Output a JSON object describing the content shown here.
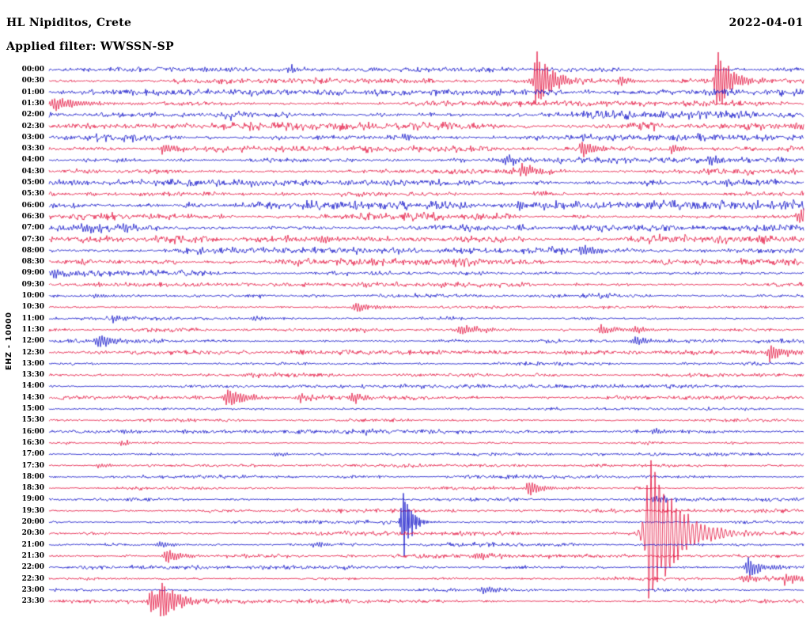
{
  "header": {
    "station": "HL Nipiditos, Crete",
    "date": "2022-04-01",
    "filter_label": "Applied filter: WWSSN-SP"
  },
  "y_axis": {
    "scale_label": "EHZ - 10000"
  },
  "colors": {
    "blue": "#0f10c8",
    "red": "#e3123d",
    "text": "#000000",
    "background": "#ffffff"
  },
  "chart_data": {
    "type": "line",
    "subtype": "helicorder-seismogram",
    "title": "HL Nipiditos, Crete",
    "date": "2022-04-01",
    "filter": "WWSSN-SP",
    "channel_scale": "EHZ - 10000",
    "minutes_per_row": 30,
    "row_count": 48,
    "trace_color_cycle": [
      "blue",
      "red"
    ],
    "legend_position": "none",
    "grid": false,
    "rows": [
      {
        "time": "00:00",
        "color": "blue",
        "noise": 2.0,
        "events": [
          {
            "x": 0.205,
            "amp": 3
          },
          {
            "x": 0.32,
            "amp": 3
          }
        ]
      },
      {
        "time": "00:30",
        "color": "red",
        "noise": 2.2,
        "events": [
          {
            "x": 0.645,
            "amp": 34,
            "tau": 6
          },
          {
            "x": 0.755,
            "amp": 5
          },
          {
            "x": 0.885,
            "amp": 40,
            "tau": 5
          }
        ]
      },
      {
        "time": "01:00",
        "color": "blue",
        "noise": 2.5,
        "events": [
          {
            "x": 0.59,
            "amp": 4
          }
        ]
      },
      {
        "time": "01:30",
        "color": "red",
        "noise": 2.2,
        "events": [
          {
            "x": 0.006,
            "amp": 9,
            "tau": 10
          }
        ]
      },
      {
        "time": "02:00",
        "color": "blue",
        "noise": 3.2,
        "events": []
      },
      {
        "time": "02:30",
        "color": "red",
        "noise": 3.0,
        "events": [
          {
            "x": 0.985,
            "amp": 5
          }
        ]
      },
      {
        "time": "03:00",
        "color": "blue",
        "noise": 2.8,
        "events": [
          {
            "x": 0.47,
            "amp": 4
          }
        ]
      },
      {
        "time": "03:30",
        "color": "red",
        "noise": 2.4,
        "events": [
          {
            "x": 0.15,
            "amp": 7
          },
          {
            "x": 0.705,
            "amp": 12,
            "tau": 5
          },
          {
            "x": 0.825,
            "amp": 5
          }
        ]
      },
      {
        "time": "04:00",
        "color": "blue",
        "noise": 2.4,
        "events": [
          {
            "x": 0.605,
            "amp": 6
          },
          {
            "x": 0.875,
            "amp": 7
          }
        ]
      },
      {
        "time": "04:30",
        "color": "red",
        "noise": 2.4,
        "events": [
          {
            "x": 0.625,
            "amp": 9,
            "tau": 6
          }
        ]
      },
      {
        "time": "05:00",
        "color": "blue",
        "noise": 2.6,
        "events": [
          {
            "x": 0.895,
            "amp": 4
          }
        ]
      },
      {
        "time": "05:30",
        "color": "red",
        "noise": 2.8,
        "events": []
      },
      {
        "time": "06:00",
        "color": "blue",
        "noise": 3.4,
        "events": [
          {
            "x": 0.62,
            "amp": 5
          }
        ]
      },
      {
        "time": "06:30",
        "color": "red",
        "noise": 3.0,
        "events": [
          {
            "x": 0.995,
            "amp": 10,
            "tau": 8
          }
        ]
      },
      {
        "time": "07:00",
        "color": "blue",
        "noise": 3.0,
        "events": [
          {
            "x": 0.045,
            "amp": 5
          },
          {
            "x": 0.1,
            "amp": 4
          }
        ]
      },
      {
        "time": "07:30",
        "color": "red",
        "noise": 3.2,
        "events": [
          {
            "x": 0.315,
            "amp": 4
          },
          {
            "x": 0.36,
            "amp": 4
          }
        ]
      },
      {
        "time": "08:00",
        "color": "blue",
        "noise": 2.6,
        "events": [
          {
            "x": 0.705,
            "amp": 8,
            "tau": 6
          }
        ]
      },
      {
        "time": "08:30",
        "color": "red",
        "noise": 3.0,
        "events": []
      },
      {
        "time": "09:00",
        "color": "blue",
        "noise": 2.2,
        "events": [
          {
            "x": 0.006,
            "amp": 6,
            "tau": 8
          }
        ]
      },
      {
        "time": "09:30",
        "color": "red",
        "noise": 1.8,
        "events": [
          {
            "x": 0.52,
            "amp": 4
          }
        ]
      },
      {
        "time": "10:00",
        "color": "blue",
        "noise": 1.8,
        "events": [
          {
            "x": 0.06,
            "amp": 3
          }
        ]
      },
      {
        "time": "10:30",
        "color": "red",
        "noise": 1.8,
        "events": [
          {
            "x": 0.405,
            "amp": 6,
            "tau": 7
          }
        ]
      },
      {
        "time": "11:00",
        "color": "blue",
        "noise": 1.8,
        "events": [
          {
            "x": 0.085,
            "amp": 4
          },
          {
            "x": 0.27,
            "amp": 3
          }
        ]
      },
      {
        "time": "11:30",
        "color": "red",
        "noise": 1.8,
        "events": [
          {
            "x": 0.545,
            "amp": 7,
            "tau": 8
          },
          {
            "x": 0.73,
            "amp": 6
          },
          {
            "x": 0.775,
            "amp": 4
          }
        ]
      },
      {
        "time": "12:00",
        "color": "blue",
        "noise": 1.7,
        "events": [
          {
            "x": 0.065,
            "amp": 7,
            "tau": 9
          },
          {
            "x": 0.775,
            "amp": 6
          }
        ]
      },
      {
        "time": "12:30",
        "color": "red",
        "noise": 1.7,
        "events": [
          {
            "x": 0.955,
            "amp": 11,
            "tau": 6
          }
        ]
      },
      {
        "time": "13:00",
        "color": "blue",
        "noise": 1.5,
        "events": []
      },
      {
        "time": "13:30",
        "color": "red",
        "noise": 1.5,
        "events": [
          {
            "x": 0.26,
            "amp": 3
          }
        ]
      },
      {
        "time": "14:00",
        "color": "blue",
        "noise": 1.5,
        "events": []
      },
      {
        "time": "14:30",
        "color": "red",
        "noise": 1.6,
        "events": [
          {
            "x": 0.235,
            "amp": 10,
            "tau": 8
          },
          {
            "x": 0.33,
            "amp": 5
          },
          {
            "x": 0.4,
            "amp": 6,
            "tau": 6
          }
        ]
      },
      {
        "time": "15:00",
        "color": "blue",
        "noise": 1.4,
        "events": []
      },
      {
        "time": "15:30",
        "color": "red",
        "noise": 1.3,
        "events": []
      },
      {
        "time": "16:00",
        "color": "blue",
        "noise": 1.8,
        "events": [
          {
            "x": 0.1,
            "amp": 3
          },
          {
            "x": 0.42,
            "amp": 3
          },
          {
            "x": 0.8,
            "amp": 4
          }
        ]
      },
      {
        "time": "16:30",
        "color": "red",
        "noise": 1.3,
        "events": [
          {
            "x": 0.095,
            "amp": 3
          }
        ]
      },
      {
        "time": "17:00",
        "color": "blue",
        "noise": 1.4,
        "events": [
          {
            "x": 0.3,
            "amp": 3
          }
        ]
      },
      {
        "time": "17:30",
        "color": "red",
        "noise": 1.3,
        "events": [
          {
            "x": 0.065,
            "amp": 3
          }
        ]
      },
      {
        "time": "18:00",
        "color": "blue",
        "noise": 1.4,
        "events": []
      },
      {
        "time": "18:30",
        "color": "red",
        "noise": 1.4,
        "events": [
          {
            "x": 0.635,
            "amp": 9,
            "tau": 6
          }
        ]
      },
      {
        "time": "19:00",
        "color": "blue",
        "noise": 1.5,
        "events": [
          {
            "x": 0.8,
            "amp": 5
          }
        ]
      },
      {
        "time": "19:30",
        "color": "red",
        "noise": 1.5,
        "events": []
      },
      {
        "time": "20:00",
        "color": "blue",
        "noise": 1.6,
        "events": [
          {
            "x": 0.468,
            "amp": 55,
            "tau": 3,
            "freq": 2.5
          }
        ]
      },
      {
        "time": "20:30",
        "color": "red",
        "noise": 1.7,
        "events": [
          {
            "x": 0.795,
            "amp": 95,
            "tau": 10,
            "freq": 1.2
          }
        ]
      },
      {
        "time": "21:00",
        "color": "blue",
        "noise": 1.6,
        "events": [
          {
            "x": 0.145,
            "amp": 4
          },
          {
            "x": 0.35,
            "amp": 3
          }
        ]
      },
      {
        "time": "21:30",
        "color": "red",
        "noise": 1.6,
        "events": [
          {
            "x": 0.155,
            "amp": 9,
            "tau": 6
          },
          {
            "x": 0.565,
            "amp": 6,
            "tau": 5
          }
        ]
      },
      {
        "time": "22:00",
        "color": "blue",
        "noise": 1.6,
        "events": [
          {
            "x": 0.925,
            "amp": 12,
            "tau": 6
          }
        ]
      },
      {
        "time": "22:30",
        "color": "red",
        "noise": 1.5,
        "events": [
          {
            "x": 0.92,
            "amp": 5
          },
          {
            "x": 0.975,
            "amp": 6
          }
        ]
      },
      {
        "time": "23:00",
        "color": "blue",
        "noise": 1.5,
        "events": [
          {
            "x": 0.575,
            "amp": 5
          }
        ]
      },
      {
        "time": "23:30",
        "color": "red",
        "noise": 1.6,
        "events": [
          {
            "x": 0.135,
            "amp": 16,
            "tau": 5
          },
          {
            "x": 0.148,
            "amp": 22,
            "tau": 7
          }
        ]
      }
    ]
  }
}
